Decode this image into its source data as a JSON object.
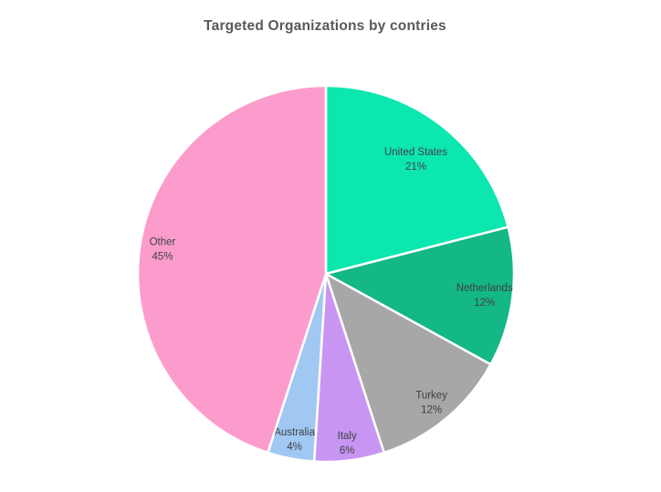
{
  "chart_data": {
    "type": "pie",
    "title": "Targeted Organizations by contries",
    "slices": [
      {
        "label": "United States",
        "value": 21,
        "pct_label": "21%",
        "color": "#0CE7B0",
        "label_r": 0.78
      },
      {
        "label": "Netherlands",
        "value": 12,
        "pct_label": "12%",
        "color": "#14B786",
        "label_r": 0.85
      },
      {
        "label": "Turkey",
        "value": 12,
        "pct_label": "12%",
        "color": "#A7A7A7",
        "label_r": 0.88
      },
      {
        "label": "Italy",
        "value": 6,
        "pct_label": "6%",
        "color": "#C896F2",
        "label_r": 0.9
      },
      {
        "label": "Australia",
        "value": 4,
        "pct_label": "4%",
        "color": "#A0C8F3",
        "label_r": 0.89
      },
      {
        "label": "Other",
        "value": 45,
        "pct_label": "45%",
        "color": "#FC9CCD",
        "label_r": 0.88
      }
    ],
    "start_angle_deg": 0,
    "direction": "clockwise",
    "slice_border_color": "#ffffff",
    "label_color": "#404047",
    "title_color": "#595959",
    "legend": "none",
    "labels_position": "inside"
  }
}
